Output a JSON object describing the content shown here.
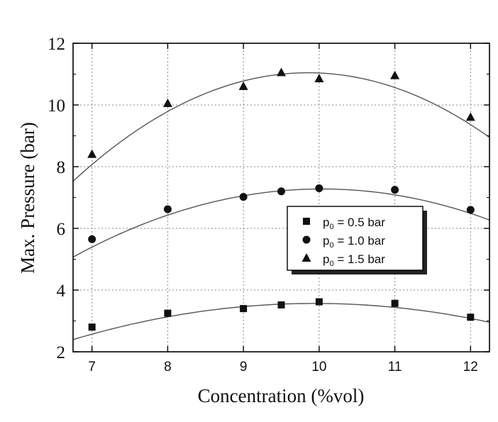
{
  "chart_data": {
    "type": "scatter",
    "title": "",
    "xlabel": "Concentration (%vol)",
    "ylabel": "Max. Pressure (bar)",
    "xlim": [
      6.75,
      12.25
    ],
    "ylim": [
      2,
      12
    ],
    "xticks": [
      7,
      8,
      9,
      10,
      11,
      12
    ],
    "yticks": [
      2,
      4,
      6,
      8,
      10,
      12
    ],
    "grid": true,
    "legend_position": "center-right",
    "series": [
      {
        "name_prefix": "p",
        "name_sub": "0",
        "name_suffix": " = 0.5 bar",
        "marker": "square",
        "x": [
          7,
          8,
          9,
          9.5,
          10,
          11,
          12
        ],
        "y": [
          2.8,
          3.25,
          3.4,
          3.52,
          3.62,
          3.57,
          3.12
        ],
        "fit_curve": [
          2.6,
          3.1,
          3.42,
          3.55,
          3.6,
          3.48,
          3.05
        ]
      },
      {
        "name_prefix": "p",
        "name_sub": "0",
        "name_suffix": " = 1.0 bar",
        "marker": "circle",
        "x": [
          7,
          8,
          9,
          9.5,
          10,
          11,
          12
        ],
        "y": [
          5.65,
          6.62,
          7.02,
          7.2,
          7.3,
          7.25,
          6.6
        ],
        "fit_curve": [
          5.4,
          6.45,
          7.0,
          7.2,
          7.3,
          7.15,
          6.45
        ]
      },
      {
        "name_prefix": "p",
        "name_sub": "0",
        "name_suffix": " = 1.5 bar",
        "marker": "triangle",
        "x": [
          7,
          8,
          9,
          9.5,
          10,
          11,
          12
        ],
        "y": [
          8.4,
          10.05,
          10.6,
          11.05,
          10.85,
          10.95,
          9.6
        ],
        "fit_curve": [
          8.0,
          9.95,
          10.75,
          10.95,
          10.95,
          10.65,
          9.35
        ]
      }
    ]
  }
}
